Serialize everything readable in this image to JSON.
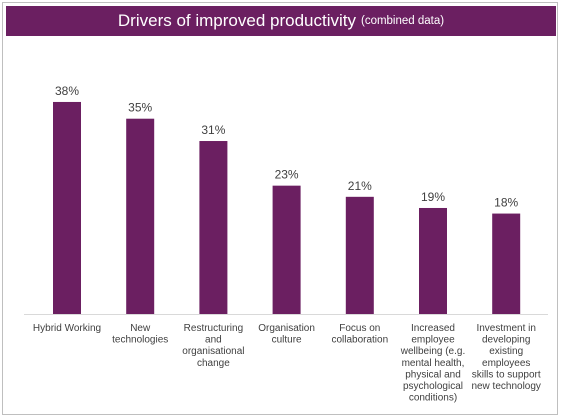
{
  "chart_data": {
    "type": "bar",
    "title": "Drivers of improved productivity",
    "subtitle": "(combined data)",
    "categories": [
      "Hybrid Working",
      "New technologies",
      "Restructuring and organisational change",
      "Organisation culture",
      "Focus on collaboration",
      "Increased employee wellbeing (e.g. mental health, physical and psychological conditions)",
      "Investment in developing existing employees skills to support new technology"
    ],
    "category_lines": [
      [
        "Hybrid Working"
      ],
      [
        "New",
        "technologies"
      ],
      [
        "Restructuring",
        "and",
        "organisational",
        "change"
      ],
      [
        "Organisation",
        "culture"
      ],
      [
        "Focus on",
        "collaboration"
      ],
      [
        "Increased",
        "employee",
        "wellbeing (e.g.",
        "mental health,",
        "physical and",
        "psychological",
        "conditions)"
      ],
      [
        "Investment in",
        "developing",
        "existing",
        "employees",
        "skills to support",
        "new technology"
      ]
    ],
    "values": [
      38,
      35,
      31,
      23,
      21,
      19,
      18
    ],
    "value_labels": [
      "38%",
      "35%",
      "31%",
      "23%",
      "21%",
      "19%",
      "18%"
    ],
    "unit": "%",
    "ylim": [
      0,
      40
    ],
    "grid": false,
    "legend": "none",
    "bar_color": "#6b1f61",
    "title_bg": "#6b1f61"
  }
}
